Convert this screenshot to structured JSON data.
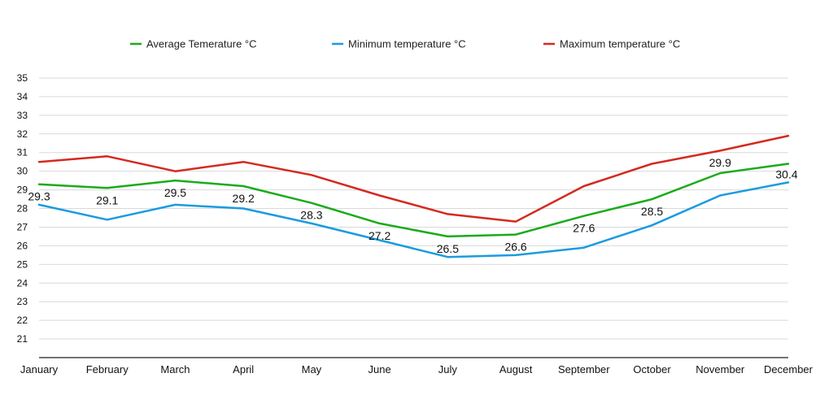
{
  "chart_data": {
    "type": "line",
    "categories": [
      "January",
      "February",
      "March",
      "April",
      "May",
      "June",
      "July",
      "August",
      "September",
      "October",
      "November",
      "December"
    ],
    "series": [
      {
        "name": "Average Temerature °C",
        "color": "#1aab1a",
        "values": [
          29.3,
          29.1,
          29.5,
          29.2,
          28.3,
          27.2,
          26.5,
          26.6,
          27.6,
          28.5,
          29.9,
          30.4
        ],
        "data_labels": [
          "29.3",
          "29.1",
          "29.5",
          "29.2",
          "28.3",
          "27.2",
          "26.5",
          "26.6",
          "27.6",
          "28.5",
          "29.9",
          "30.4"
        ]
      },
      {
        "name": "Minimum temperature °C",
        "color": "#1a9be0",
        "values": [
          28.2,
          27.4,
          28.2,
          28.0,
          27.2,
          26.3,
          25.4,
          25.5,
          25.9,
          27.1,
          28.7,
          29.4
        ]
      },
      {
        "name": "Maximum temperature °C",
        "color": "#d42a1f",
        "values": [
          30.5,
          30.8,
          30.0,
          30.5,
          29.8,
          28.7,
          27.7,
          27.3,
          29.2,
          30.4,
          31.1,
          31.9
        ]
      }
    ],
    "yticks": [
      21,
      22,
      23,
      24,
      25,
      26,
      27,
      28,
      29,
      30,
      31,
      32,
      33,
      34,
      35
    ],
    "ylim": [
      20,
      35
    ],
    "grid": true,
    "legend_position": "top"
  }
}
